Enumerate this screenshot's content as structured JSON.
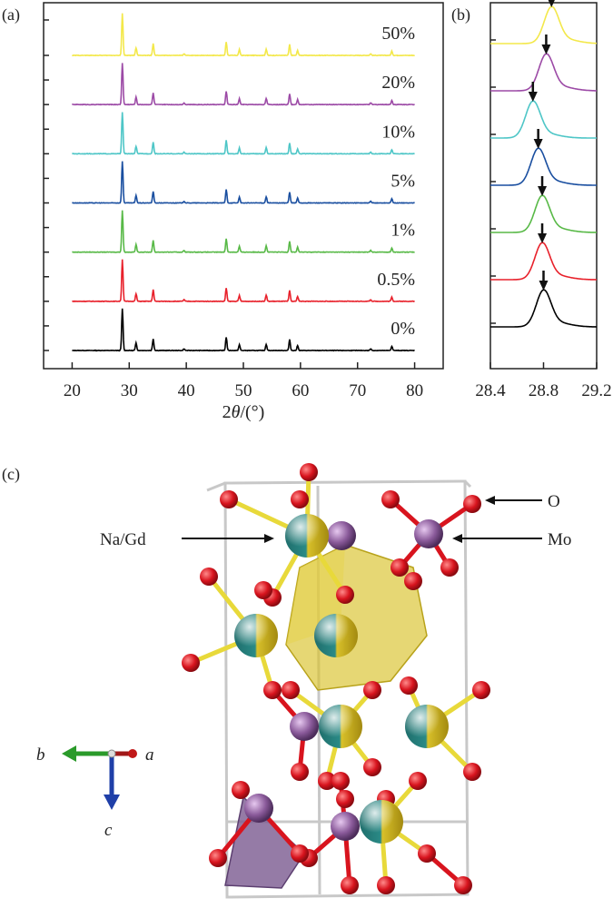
{
  "chart_data": [
    {
      "panel": "(a)",
      "type": "line",
      "xlabel_prefix": "2",
      "xlabel_var": "θ",
      "xlabel_unit": "/(°)",
      "xlim": [
        15,
        85
      ],
      "xticks": [
        "20",
        "30",
        "40",
        "50",
        "60",
        "70",
        "80"
      ],
      "x_tick_values": [
        20,
        30,
        40,
        50,
        60,
        70,
        80
      ],
      "peak_positions": [
        28.8,
        31.2,
        34.2,
        39.6,
        47.0,
        49.3,
        54.0,
        58.1,
        59.5,
        72.3,
        76.0
      ],
      "peak_heights": [
        1.0,
        0.18,
        0.28,
        0.04,
        0.32,
        0.14,
        0.15,
        0.26,
        0.12,
        0.04,
        0.1
      ],
      "series": [
        {
          "name": "0%",
          "color": "#000000"
        },
        {
          "name": "0.5%",
          "color": "#e8212b"
        },
        {
          "name": "1%",
          "color": "#58b947"
        },
        {
          "name": "5%",
          "color": "#1a4fa0"
        },
        {
          "name": "10%",
          "color": "#4ec6c7"
        },
        {
          "name": "20%",
          "color": "#9c4aa6"
        },
        {
          "name": "50%",
          "color": "#f3e84a"
        }
      ]
    },
    {
      "panel": "(b)",
      "type": "line",
      "xlim": [
        28.4,
        29.2
      ],
      "xticks": [
        "28.4",
        "28.8",
        "29.2"
      ],
      "x_tick_values": [
        28.4,
        28.8,
        29.2
      ],
      "peak_centers": {
        "0%": 28.8,
        "0.5%": 28.79,
        "1%": 28.79,
        "5%": 28.76,
        "10%": 28.72,
        "20%": 28.82,
        "50%": 28.86
      }
    }
  ],
  "panels": {
    "a": "(a)",
    "b": "(b)",
    "c": "(c)"
  },
  "structure": {
    "labels": {
      "o": "O",
      "mo": "Mo",
      "nagd": "Na/Gd"
    },
    "axes": {
      "a": "a",
      "b": "b",
      "c": "c"
    },
    "colors": {
      "oxygen": "#d8141e",
      "mo": "#8a5a9a",
      "nagd_gold": "#d9c12a",
      "nagd_teal": "#1f7b78",
      "bond": "#e8d93a",
      "cell": "#c8c8c8"
    }
  }
}
